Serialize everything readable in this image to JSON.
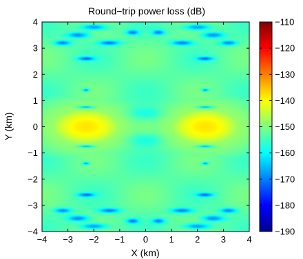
{
  "chart_data": {
    "type": "heatmap",
    "title": "Round−trip power loss (dB)",
    "xlabel": "X (km)",
    "ylabel": "Y (km)",
    "xlim": [
      -4,
      4
    ],
    "ylim": [
      -4,
      4
    ],
    "x_ticks": [
      "−4",
      "−3",
      "−2",
      "−1",
      "0",
      "1",
      "2",
      "3",
      "4"
    ],
    "y_ticks": [
      "4",
      "3",
      "2",
      "1",
      "0",
      "−1",
      "−2",
      "−3",
      "−4"
    ],
    "colorbar": {
      "range": [
        -190,
        -110
      ],
      "ticks": [
        "−110",
        "−120",
        "−130",
        "−140",
        "−150",
        "−160",
        "−170",
        "−180",
        "−190"
      ],
      "colormap": "jet"
    },
    "features": {
      "background_level": -153,
      "hotspots": [
        {
          "x": -2.3,
          "y": 0,
          "peak": -138
        },
        {
          "x": 2.3,
          "y": 0,
          "peak": -138
        }
      ],
      "nulls_min_level": -172
    }
  }
}
